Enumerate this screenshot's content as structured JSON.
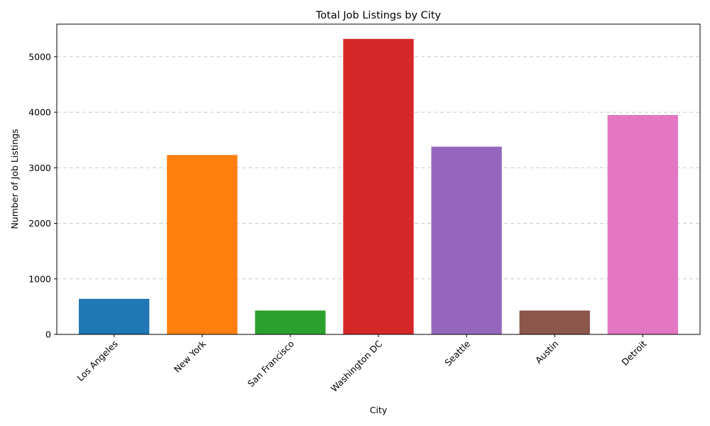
{
  "chart_data": {
    "type": "bar",
    "title": "Total Job Listings by City",
    "xlabel": "City",
    "ylabel": "Number of Job Listings",
    "categories": [
      "Los Angeles",
      "New York",
      "San Francisco",
      "Washington DC",
      "Seattle",
      "Austin",
      "Detroit"
    ],
    "values": [
      640,
      3230,
      430,
      5320,
      3380,
      430,
      3950
    ],
    "colors": [
      "#1f77b4",
      "#ff7f0e",
      "#2ca02c",
      "#d62728",
      "#9467bd",
      "#8c564b",
      "#e377c2"
    ],
    "ylim": [
      0,
      5586
    ],
    "yticks": [
      0,
      1000,
      2000,
      3000,
      4000,
      5000
    ],
    "grid": "y-dashed",
    "legend": "none"
  }
}
